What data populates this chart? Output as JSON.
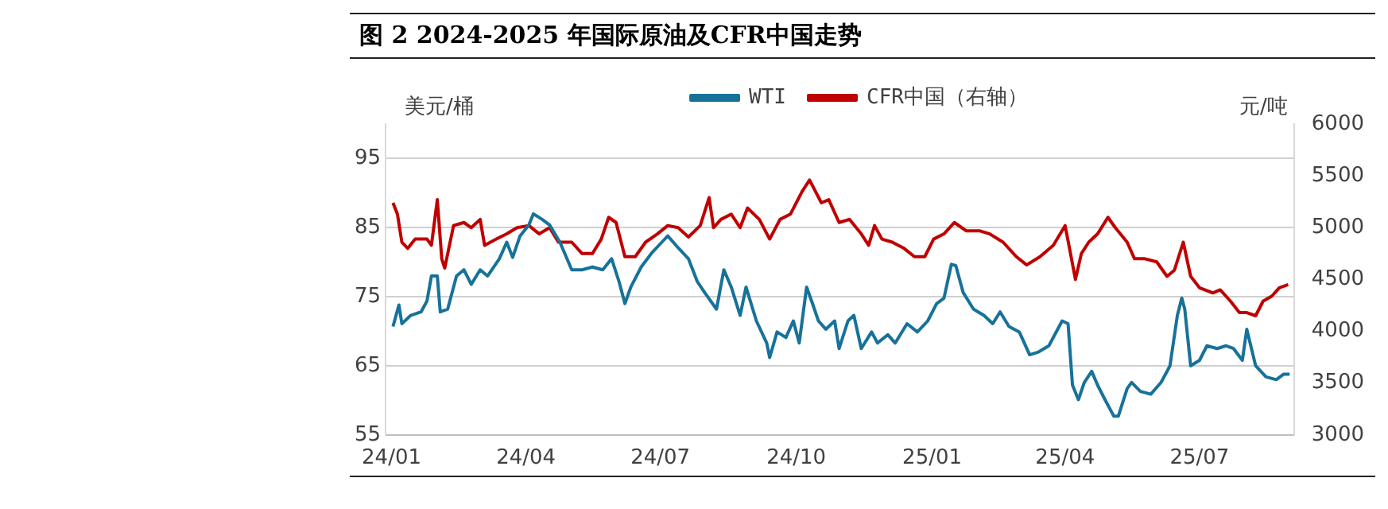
{
  "chart_data": {
    "type": "line",
    "title": "图 2 2024-2025 年国际原油及CFR中国走势",
    "ylabel": "美元/桶",
    "y2label": "元/吨",
    "xlim": [
      "2023-12-28",
      "2025-09-03"
    ],
    "xticks": [
      {
        "value": "2024-01-01",
        "label": "24/01"
      },
      {
        "value": "2024-04-01",
        "label": "24/04"
      },
      {
        "value": "2024-07-01",
        "label": "24/07"
      },
      {
        "value": "2024-10-01",
        "label": "24/10"
      },
      {
        "value": "2025-01-01",
        "label": "25/01"
      },
      {
        "value": "2025-04-01",
        "label": "25/04"
      },
      {
        "value": "2025-07-01",
        "label": "25/07"
      }
    ],
    "ylim": [
      55,
      100
    ],
    "yticks": [
      55,
      65,
      75,
      85,
      95
    ],
    "y2lim": [
      3000,
      6000
    ],
    "y2ticks": [
      3000,
      3500,
      4000,
      4500,
      5000,
      5500,
      6000
    ],
    "grid": "y",
    "legend": "top",
    "series": [
      {
        "name": "WTI",
        "color": "#17729a",
        "x": [
          "2024-01-02",
          "2024-01-06",
          "2024-01-08",
          "2024-01-14",
          "2024-01-21",
          "2024-01-25",
          "2024-01-28",
          "2024-02-01",
          "2024-02-03",
          "2024-02-08",
          "2024-02-14",
          "2024-02-19",
          "2024-02-24",
          "2024-03-01",
          "2024-03-06",
          "2024-03-14",
          "2024-03-19",
          "2024-03-23",
          "2024-03-28",
          "2024-04-03",
          "2024-04-06",
          "2024-04-12",
          "2024-04-17",
          "2024-04-24",
          "2024-05-02",
          "2024-05-09",
          "2024-05-16",
          "2024-05-23",
          "2024-05-29",
          "2024-06-03",
          "2024-06-07",
          "2024-06-11",
          "2024-06-18",
          "2024-06-25",
          "2024-07-02",
          "2024-07-06",
          "2024-07-13",
          "2024-07-20",
          "2024-07-26",
          "2024-07-31",
          "2024-08-08",
          "2024-08-13",
          "2024-08-18",
          "2024-08-24",
          "2024-08-28",
          "2024-09-04",
          "2024-09-11",
          "2024-09-13",
          "2024-09-18",
          "2024-09-24",
          "2024-09-29",
          "2024-10-03",
          "2024-10-08",
          "2024-10-12",
          "2024-10-16",
          "2024-10-21",
          "2024-10-27",
          "2024-10-30",
          "2024-11-05",
          "2024-11-09",
          "2024-11-14",
          "2024-11-21",
          "2024-11-25",
          "2024-12-02",
          "2024-12-07",
          "2024-12-15",
          "2024-12-22",
          "2024-12-29",
          "2025-01-04",
          "2025-01-09",
          "2025-01-14",
          "2025-01-17",
          "2025-01-22",
          "2025-01-29",
          "2025-02-05",
          "2025-02-11",
          "2025-02-16",
          "2025-02-22",
          "2025-03-01",
          "2025-03-08",
          "2025-03-14",
          "2025-03-21",
          "2025-03-30",
          "2025-04-03",
          "2025-04-06",
          "2025-04-10",
          "2025-04-14",
          "2025-04-19",
          "2025-04-23",
          "2025-04-28",
          "2025-05-04",
          "2025-05-07",
          "2025-05-13",
          "2025-05-16",
          "2025-05-22",
          "2025-05-29",
          "2025-06-05",
          "2025-06-11",
          "2025-06-16",
          "2025-06-19",
          "2025-06-21",
          "2025-06-25",
          "2025-07-01",
          "2025-07-06",
          "2025-07-13",
          "2025-07-19",
          "2025-07-24",
          "2025-07-30",
          "2025-08-02",
          "2025-08-08",
          "2025-08-15",
          "2025-08-22",
          "2025-08-27",
          "2025-08-31"
        ],
        "values": [
          70.7,
          73.8,
          71.1,
          72.3,
          72.8,
          74.4,
          78,
          78,
          72.8,
          73.2,
          78,
          78.9,
          76.8,
          78.9,
          78,
          80.5,
          82.9,
          80.7,
          83.8,
          85.4,
          87,
          86.2,
          85.4,
          82.9,
          78.9,
          78.9,
          79.3,
          78.9,
          80.5,
          77.2,
          74,
          76.4,
          79.3,
          81.3,
          82.9,
          83.8,
          82.1,
          80.5,
          77.2,
          75.6,
          73.2,
          78.9,
          76.4,
          72.3,
          76.4,
          71.5,
          68.3,
          66.2,
          69.9,
          69.1,
          71.5,
          68.3,
          76.4,
          74,
          71.5,
          70.3,
          71.5,
          67.5,
          71.5,
          72.3,
          67.5,
          69.9,
          68.3,
          69.5,
          68.3,
          71.1,
          69.9,
          71.5,
          74,
          74.8,
          79.7,
          79.5,
          75.6,
          73.2,
          72.3,
          71.1,
          72.8,
          70.7,
          69.9,
          66.6,
          67,
          67.9,
          71.5,
          71.1,
          62.2,
          60.1,
          62.6,
          64.2,
          62.2,
          60.1,
          57.7,
          57.7,
          61.7,
          62.6,
          61.3,
          60.9,
          62.6,
          65,
          72.3,
          74.8,
          73.2,
          65,
          65.8,
          67.9,
          67.5,
          67.9,
          67.5,
          65.8,
          70.3,
          65,
          63.4,
          63,
          63.8,
          63.8
        ]
      },
      {
        "name": "CFR中国（右轴）",
        "color": "#c00000",
        "axis": "y2",
        "x": [
          "2024-01-02",
          "2024-01-05",
          "2024-01-08",
          "2024-01-12",
          "2024-01-17",
          "2024-01-25",
          "2024-01-28",
          "2024-02-01",
          "2024-02-04",
          "2024-02-06",
          "2024-02-12",
          "2024-02-19",
          "2024-02-24",
          "2024-03-01",
          "2024-03-04",
          "2024-03-12",
          "2024-03-19",
          "2024-03-26",
          "2024-04-03",
          "2024-04-10",
          "2024-04-17",
          "2024-04-23",
          "2024-05-02",
          "2024-05-09",
          "2024-05-16",
          "2024-05-22",
          "2024-05-27",
          "2024-06-01",
          "2024-06-07",
          "2024-06-14",
          "2024-06-21",
          "2024-06-29",
          "2024-07-06",
          "2024-07-13",
          "2024-07-20",
          "2024-07-28",
          "2024-08-03",
          "2024-08-06",
          "2024-08-11",
          "2024-08-18",
          "2024-08-24",
          "2024-08-29",
          "2024-09-06",
          "2024-09-13",
          "2024-09-20",
          "2024-09-27",
          "2024-10-05",
          "2024-10-10",
          "2024-10-18",
          "2024-10-23",
          "2024-10-30",
          "2024-11-06",
          "2024-11-14",
          "2024-11-19",
          "2024-11-23",
          "2024-11-28",
          "2024-12-05",
          "2024-12-13",
          "2024-12-20",
          "2024-12-27",
          "2025-01-02",
          "2025-01-09",
          "2025-01-16",
          "2025-01-24",
          "2025-02-02",
          "2025-02-09",
          "2025-02-18",
          "2025-02-27",
          "2025-03-06",
          "2025-03-15",
          "2025-03-24",
          "2025-04-01",
          "2025-04-04",
          "2025-04-08",
          "2025-04-12",
          "2025-04-17",
          "2025-04-23",
          "2025-04-30",
          "2025-05-05",
          "2025-05-13",
          "2025-05-18",
          "2025-05-25",
          "2025-06-02",
          "2025-06-09",
          "2025-06-14",
          "2025-06-20",
          "2025-06-25",
          "2025-07-01",
          "2025-07-10",
          "2025-07-15",
          "2025-07-22",
          "2025-07-28",
          "2025-08-02",
          "2025-08-08",
          "2025-08-13",
          "2025-08-19",
          "2025-08-24",
          "2025-08-30"
        ],
        "values": [
          5240,
          5130,
          4860,
          4800,
          4890,
          4890,
          4830,
          5270,
          4700,
          4610,
          5020,
          5050,
          5000,
          5080,
          4830,
          4890,
          4940,
          5000,
          5020,
          4940,
          5000,
          4860,
          4860,
          4750,
          4750,
          4890,
          5100,
          5050,
          4720,
          4720,
          4860,
          4940,
          5020,
          5000,
          4910,
          5020,
          5290,
          5000,
          5080,
          5130,
          5000,
          5190,
          5080,
          4890,
          5080,
          5130,
          5350,
          5460,
          5240,
          5270,
          5050,
          5080,
          4940,
          4830,
          5020,
          4890,
          4860,
          4800,
          4720,
          4720,
          4890,
          4940,
          5050,
          4970,
          4970,
          4940,
          4860,
          4720,
          4640,
          4720,
          4830,
          5020,
          4800,
          4500,
          4750,
          4860,
          4940,
          5100,
          5000,
          4860,
          4700,
          4700,
          4670,
          4530,
          4590,
          4860,
          4530,
          4420,
          4370,
          4400,
          4290,
          4180,
          4180,
          4150,
          4290,
          4340,
          4420,
          4450
        ]
      }
    ]
  }
}
